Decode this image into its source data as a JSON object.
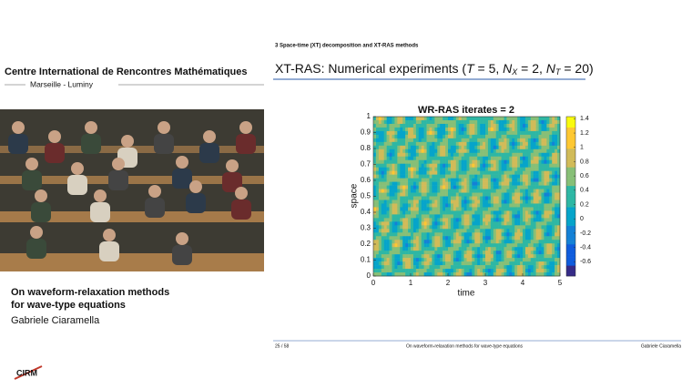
{
  "sidebar": {
    "institute": "Centre International de Rencontres Mathématiques",
    "location": "Marseille - Luminy",
    "talk_title": [
      "On waveform-relaxation methods",
      "for wave-type equations"
    ],
    "speaker": "Gabriele Ciaramella",
    "logo": "CIRM"
  },
  "slide": {
    "section": "3 Space-time (XT) decomposition and XT-RAS methods",
    "title_parts": [
      {
        "text": "XT-RAS: Numerical experiments (",
        "style": "normal"
      },
      {
        "text": "T",
        "style": "italic"
      },
      {
        "text": " = 5, ",
        "style": "normal"
      },
      {
        "text": "N",
        "style": "italic"
      },
      {
        "text": "X",
        "style": "subscript"
      },
      {
        "text": " = 2, ",
        "style": "normal"
      },
      {
        "text": "N",
        "style": "italic"
      },
      {
        "text": "T",
        "style": "subscript"
      },
      {
        "text": " = 20)",
        "style": "normal"
      }
    ],
    "plot": {
      "type": "heatmap",
      "title": "WR-RAS iterates = 2",
      "xlabel": "time",
      "ylabel": "space",
      "xlim": [
        0,
        5
      ],
      "xticks": [
        0,
        1,
        2,
        3,
        4,
        5
      ],
      "ylim": [
        0,
        1
      ],
      "yticks": [
        0,
        0.1,
        0.2,
        0.3,
        0.4,
        0.5,
        0.6,
        0.7,
        0.8,
        0.9,
        1
      ],
      "clim": [
        -0.8,
        1.43
      ],
      "cticks": [
        1.4,
        1.2,
        1,
        0.8,
        0.6,
        0.4,
        0.2,
        0,
        -0.2,
        -0.4,
        -0.6
      ],
      "colormap": [
        "#352a87",
        "#0f5cdd",
        "#1481d6",
        "#06a4ca",
        "#2eb7a4",
        "#87bf77",
        "#d1bb59",
        "#fec832",
        "#f9fb0e"
      ]
    },
    "footer": {
      "page": "25 / 58",
      "talk": "On waveform-relaxation methods for wave-type equations",
      "author": "Gabriele Ciaramella"
    }
  }
}
